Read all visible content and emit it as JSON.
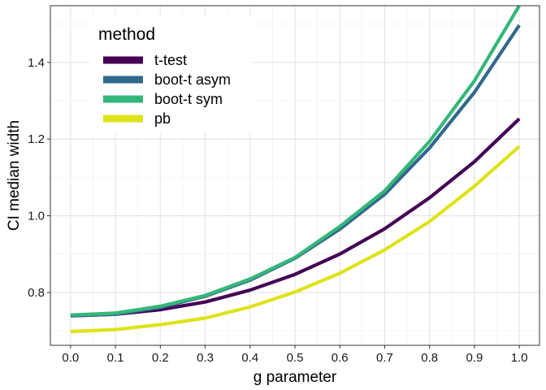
{
  "chart_data": {
    "type": "line",
    "xlabel": "g parameter",
    "ylabel": "CI median width",
    "xlim": [
      -0.045,
      1.045
    ],
    "ylim": [
      0.662,
      1.548
    ],
    "x_ticks": [
      0.0,
      0.1,
      0.2,
      0.3,
      0.4,
      0.5,
      0.6,
      0.7,
      0.8,
      0.9,
      1.0
    ],
    "x_tick_labels": [
      "0.0",
      "0.1",
      "0.2",
      "0.3",
      "0.4",
      "0.5",
      "0.6",
      "0.7",
      "0.8",
      "0.9",
      "1.0"
    ],
    "y_ticks": [
      0.8,
      1.0,
      1.2,
      1.4
    ],
    "y_tick_labels": [
      "0.8",
      "1.0",
      "1.2",
      "1.4"
    ],
    "grid": true,
    "legend_title": "method",
    "legend_position": "top-left",
    "x": [
      0.0,
      0.1,
      0.2,
      0.3,
      0.4,
      0.5,
      0.6,
      0.7,
      0.8,
      0.9,
      1.0
    ],
    "series": [
      {
        "name": "t-test",
        "color": "#440154",
        "values": [
          0.739,
          0.743,
          0.755,
          0.775,
          0.806,
          0.847,
          0.9,
          0.966,
          1.047,
          1.141,
          1.253
        ]
      },
      {
        "name": "boot-t asym",
        "color": "#31688E",
        "values": [
          0.739,
          0.743,
          0.761,
          0.79,
          0.832,
          0.889,
          0.965,
          1.056,
          1.177,
          1.322,
          1.497
        ]
      },
      {
        "name": "boot-t sym",
        "color": "#35B779",
        "values": [
          0.741,
          0.746,
          0.764,
          0.792,
          0.835,
          0.891,
          0.972,
          1.065,
          1.194,
          1.352,
          1.548
        ]
      },
      {
        "name": "pb",
        "color": "#DDE318",
        "values": [
          0.698,
          0.703,
          0.716,
          0.733,
          0.762,
          0.801,
          0.85,
          0.911,
          0.985,
          1.077,
          1.181
        ]
      }
    ]
  }
}
